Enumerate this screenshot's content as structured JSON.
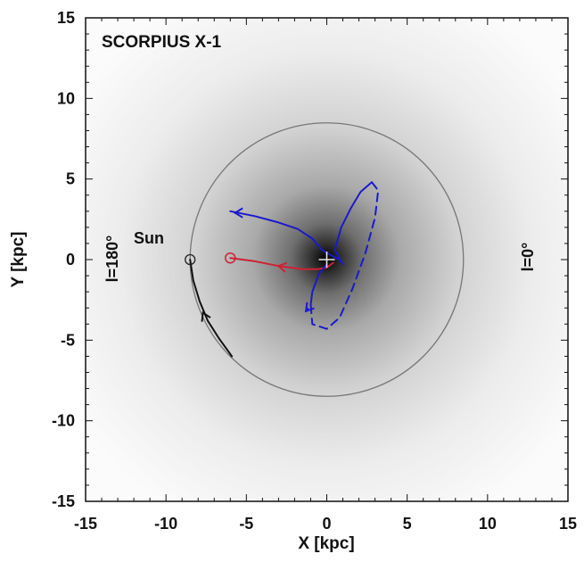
{
  "chart_data": {
    "type": "scatter",
    "title": "SCORPIUS X-1",
    "xlabel": "X [kpc]",
    "ylabel": "Y [kpc]",
    "xlim": [
      -15,
      15
    ],
    "ylim": [
      -15,
      15
    ],
    "xticks": [
      -15,
      -10,
      -5,
      0,
      5,
      10,
      15
    ],
    "yticks": [
      -15,
      -10,
      -5,
      0,
      5,
      10,
      15
    ],
    "xtick_labels": [
      "-15",
      "-10",
      "-5",
      "0",
      "5",
      "10",
      "15"
    ],
    "ytick_labels": [
      "-15",
      "-10",
      "-5",
      "0",
      "5",
      "10",
      "15"
    ],
    "grid": false,
    "background": "grayscale galactic density map, darkest at the Galactic Center (0,0)",
    "annotations": {
      "sun": "Sun",
      "l180": "l=180°",
      "l0": "l=0°"
    },
    "solar_circle": {
      "center": [
        0,
        0
      ],
      "radius": 8.5,
      "color": "#777777"
    },
    "sun_position": [
      -8.5,
      0
    ],
    "source_position": [
      -6.0,
      0.1
    ],
    "galactic_center": [
      0,
      0
    ],
    "series": [
      {
        "color": "#cc2233",
        "style": "solid",
        "points": [
          [
            -6.0,
            0.1
          ],
          [
            -4.5,
            -0.1
          ],
          [
            -3.0,
            -0.4
          ],
          [
            -1.5,
            -0.6
          ],
          [
            -0.6,
            -0.6
          ],
          [
            0.0,
            -0.5
          ],
          [
            0.4,
            -0.2
          ]
        ]
      },
      {
        "color": "#1a1acc",
        "style": "solid",
        "points": [
          [
            -6.0,
            3.0
          ],
          [
            -4.5,
            2.7
          ],
          [
            -3.0,
            2.3
          ],
          [
            -1.8,
            1.9
          ],
          [
            -0.9,
            1.3
          ],
          [
            -0.3,
            0.6
          ],
          [
            0.2,
            0.3
          ],
          [
            0.8,
            0.0
          ],
          [
            1.0,
            -0.3
          ],
          [
            0.5,
            0.6
          ],
          [
            0.9,
            2.0
          ],
          [
            1.5,
            3.2
          ],
          [
            2.1,
            4.2
          ],
          [
            2.8,
            4.8
          ]
        ]
      },
      {
        "color": "#1a1acc",
        "style": "dashed",
        "points": [
          [
            2.8,
            4.8
          ],
          [
            3.2,
            4.3
          ],
          [
            3.0,
            2.6
          ],
          [
            2.4,
            0.4
          ],
          [
            1.6,
            -1.8
          ],
          [
            0.8,
            -3.6
          ],
          [
            0.0,
            -4.3
          ],
          [
            -0.9,
            -4.0
          ],
          [
            -1.0,
            -2.8
          ],
          [
            -1.3,
            -3.2
          ]
        ]
      },
      {
        "color": "#1a1acc",
        "style": "solid",
        "points": [
          [
            0.0,
            -0.3
          ],
          [
            -0.5,
            -0.9
          ],
          [
            -0.9,
            -2.0
          ],
          [
            -1.0,
            -2.8
          ]
        ]
      },
      {
        "color": "#111111",
        "style": "solid",
        "points": [
          [
            -8.5,
            0.0
          ],
          [
            -8.3,
            -1.3
          ],
          [
            -7.9,
            -2.6
          ],
          [
            -7.4,
            -3.8
          ],
          [
            -6.7,
            -4.9
          ],
          [
            -5.9,
            -6.0
          ]
        ]
      }
    ],
    "direction_arrows": [
      {
        "at": [
          -5.7,
          2.9
        ],
        "angle_deg": 180,
        "color": "#1a1acc"
      },
      {
        "at": [
          -3.0,
          -0.4
        ],
        "angle_deg": 170,
        "color": "#cc2233"
      },
      {
        "at": [
          -1.3,
          -3.2
        ],
        "angle_deg": 230,
        "color": "#1a1acc"
      },
      {
        "at": [
          -7.7,
          -3.3
        ],
        "angle_deg": 115,
        "color": "#111111"
      }
    ]
  }
}
